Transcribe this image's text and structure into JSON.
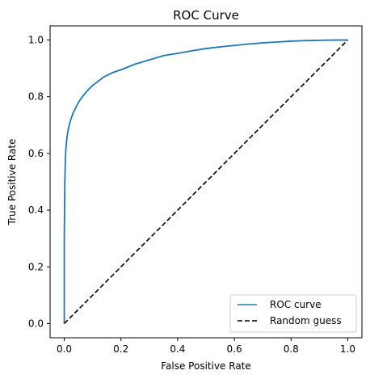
{
  "chart_data": {
    "type": "line",
    "title": "ROC Curve",
    "xlabel": "False Positive Rate",
    "ylabel": "True Positive Rate",
    "xlim": [
      -0.05,
      1.05
    ],
    "ylim": [
      -0.05,
      1.05
    ],
    "xticks": [
      "0.0",
      "0.2",
      "0.4",
      "0.6",
      "0.8",
      "1.0"
    ],
    "yticks": [
      "0.0",
      "0.2",
      "0.4",
      "0.6",
      "0.8",
      "1.0"
    ],
    "grid": false,
    "legend_position": "lower-right",
    "series": [
      {
        "name": "ROC curve",
        "color": "#1f77b4",
        "style": "solid",
        "x": [
          0.0,
          0.0,
          0.002,
          0.004,
          0.006,
          0.01,
          0.015,
          0.02,
          0.03,
          0.04,
          0.05,
          0.06,
          0.08,
          0.1,
          0.12,
          0.14,
          0.17,
          0.2,
          0.25,
          0.3,
          0.35,
          0.4,
          0.45,
          0.5,
          0.55,
          0.6,
          0.65,
          0.7,
          0.75,
          0.8,
          0.85,
          0.9,
          0.95,
          1.0
        ],
        "y": [
          0.0,
          0.3,
          0.5,
          0.58,
          0.62,
          0.66,
          0.69,
          0.71,
          0.74,
          0.76,
          0.78,
          0.795,
          0.82,
          0.84,
          0.855,
          0.87,
          0.885,
          0.895,
          0.915,
          0.93,
          0.945,
          0.953,
          0.962,
          0.97,
          0.976,
          0.981,
          0.986,
          0.99,
          0.993,
          0.996,
          0.998,
          0.999,
          1.0,
          1.0
        ]
      },
      {
        "name": "Random guess",
        "color": "#000000",
        "style": "dashed",
        "x": [
          0.0,
          1.0
        ],
        "y": [
          0.0,
          1.0
        ]
      }
    ]
  }
}
